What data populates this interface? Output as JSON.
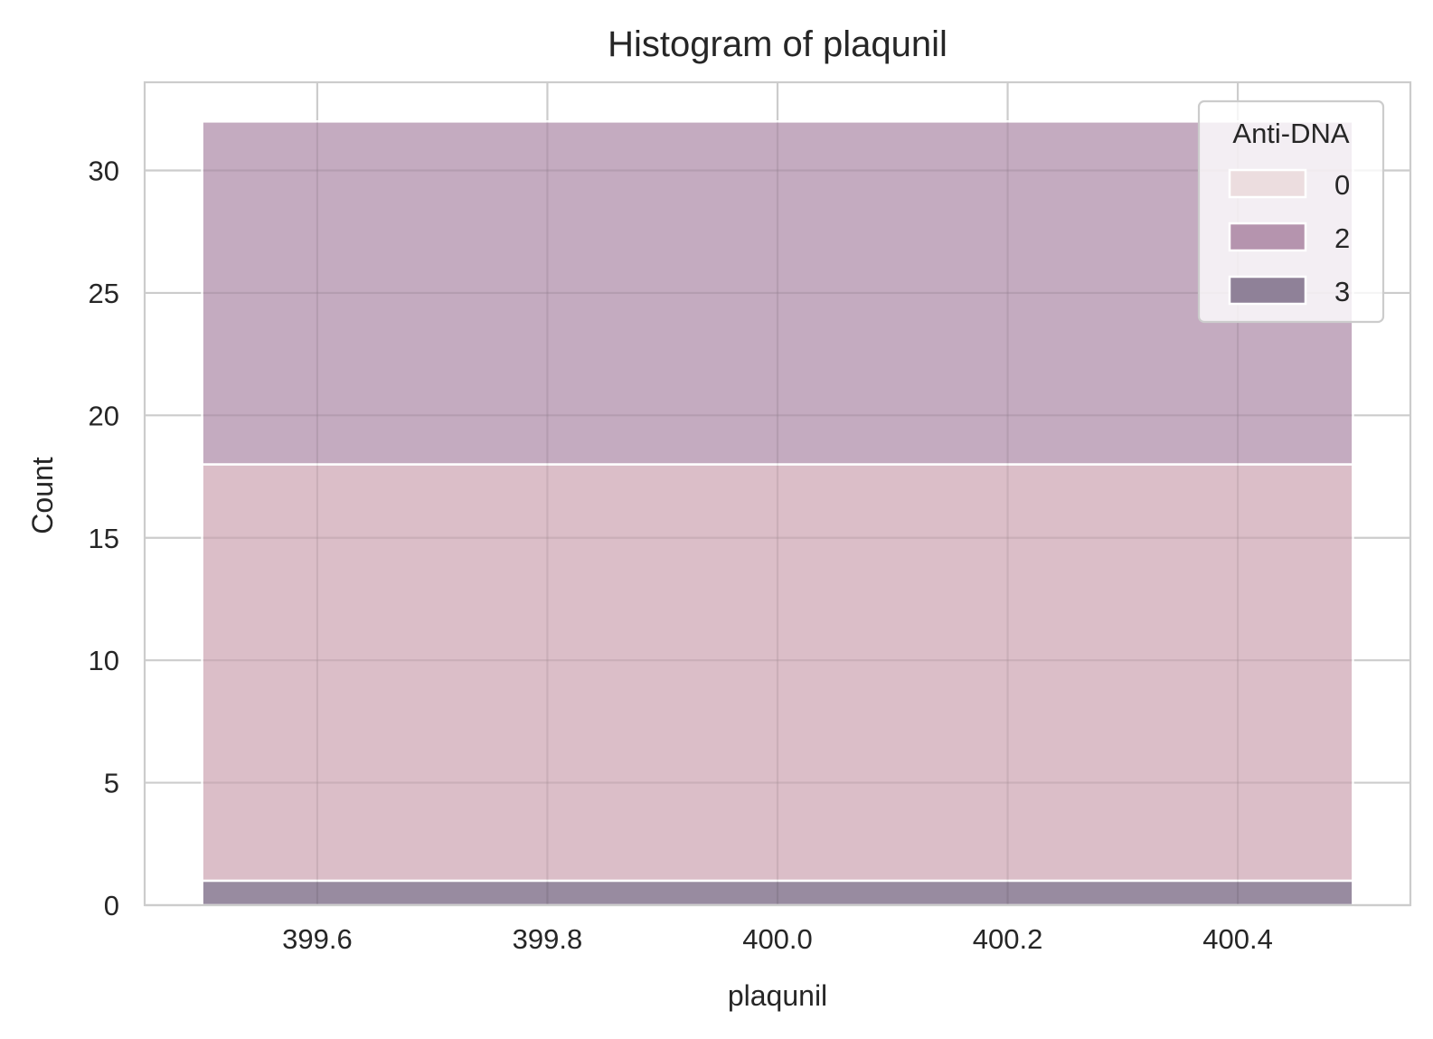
{
  "chart_data": {
    "type": "bar",
    "title": "Histogram of plaqunil",
    "xlabel": "plaqunil",
    "ylabel": "Count",
    "xlim": [
      399.45,
      400.55
    ],
    "ylim": [
      0,
      33.6
    ],
    "x_ticks": [
      399.6,
      399.8,
      400.0,
      400.2,
      400.4
    ],
    "x_tick_labels": [
      "399.6",
      "399.8",
      "400.0",
      "400.2",
      "400.4"
    ],
    "y_ticks": [
      0,
      5,
      10,
      15,
      20,
      25,
      30
    ],
    "y_tick_labels": [
      "0",
      "5",
      "10",
      "15",
      "20",
      "25",
      "30"
    ],
    "grid": true,
    "stacked": true,
    "bin": [
      399.5,
      400.5
    ],
    "series": [
      {
        "name": "3",
        "values": [
          1
        ],
        "color": "#8f8198"
      },
      {
        "name": "0",
        "values": [
          17
        ],
        "color": "#d8b8c3"
      },
      {
        "name": "2",
        "values": [
          14
        ],
        "color": "#bfa4bb"
      }
    ],
    "legend": {
      "title": "Anti-DNA",
      "position": "top-right",
      "entries": [
        {
          "label": "0",
          "color": "#ecdddf"
        },
        {
          "label": "2",
          "color": "#b594ae"
        },
        {
          "label": "3",
          "color": "#8f8198"
        }
      ]
    }
  }
}
